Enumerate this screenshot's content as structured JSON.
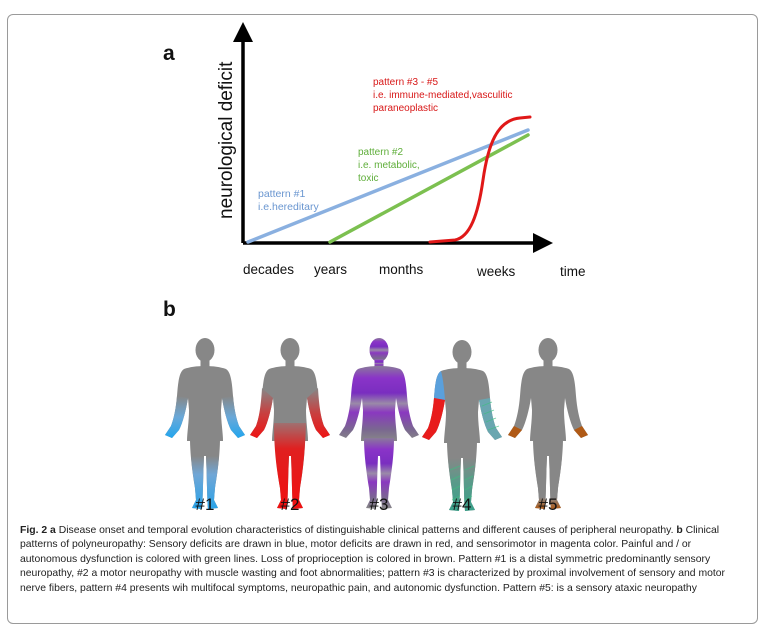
{
  "panel_a": {
    "label": "a",
    "y_axis_label": "neurological deficit",
    "x_ticks": [
      "decades",
      "years",
      "months",
      "weeks"
    ],
    "x_axis_label": "time",
    "pattern1": {
      "title": "pattern #1",
      "detail": "i.e.hereditary",
      "color": "#8ab0e0"
    },
    "pattern2": {
      "title": "pattern #2",
      "detail1": "i.e. metabolic,",
      "detail2": "toxic",
      "color": "#7cc050"
    },
    "pattern3": {
      "title": "pattern #3 - #5",
      "detail1": "i.e. immune-mediated,vasculitic",
      "detail2": "paraneoplastic",
      "color": "#e01818"
    }
  },
  "panel_b": {
    "label": "b",
    "figures": [
      {
        "label": "#1",
        "pattern": "sensory"
      },
      {
        "label": "#2",
        "pattern": "motor"
      },
      {
        "label": "#3",
        "pattern": "sensorimotor"
      },
      {
        "label": "#4",
        "pattern": "multifocal"
      },
      {
        "label": "#5",
        "pattern": "ataxic"
      }
    ]
  },
  "caption": {
    "fig": "Fig. 2",
    "a": "a",
    "text_a": " Disease onset and temporal evolution characteristics of distinguishable clinical patterns and different causes of peripheral neuropathy. ",
    "b": "b",
    "text_b": " Clinical patterns of polyneuropathy: Sensory deficits are drawn in blue, motor deficits are drawn in red, and sensorimotor in magenta color. Painful and / or autonomous dysfunction is colored with green lines. Loss of proprioception is colored in brown. Pattern #1 is a distal symmetric predominantly sensory neuropathy, #2 a motor neuropathy with muscle wasting and foot abnormalities; pattern #3 is characterized by proximal involvement of sensory and motor nerve fibers, pattern #4 presents wih multifocal symptoms, neuropathic pain, and autonomic dysfunction. Pattern #5: is a sensory ataxic neuropathy"
  }
}
